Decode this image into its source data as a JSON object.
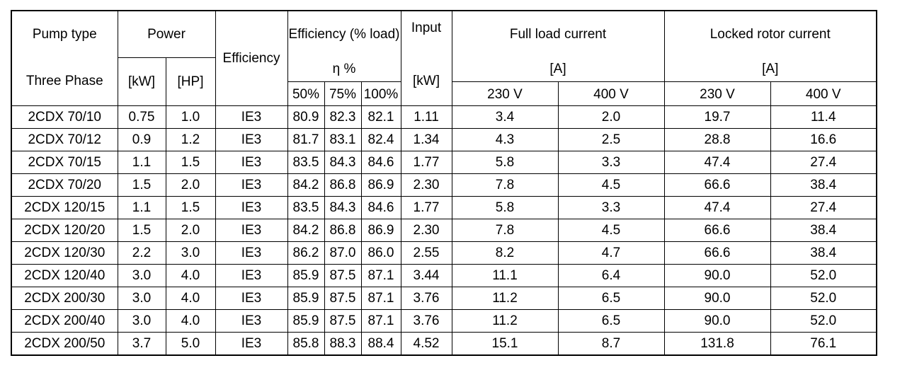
{
  "header": {
    "pump_type": "Pump type",
    "three_phase": "Three Phase",
    "power": "Power",
    "kw": "[kW]",
    "hp": "[HP]",
    "efficiency": "Efficiency",
    "efficiency_load": "Efficiency (% load)",
    "eta_pct": "η %",
    "load_50": "50%",
    "load_75": "75%",
    "load_100": "100%",
    "input": "Input",
    "input_kw": "[kW]",
    "full_load_current": "Full load current",
    "full_load_unit": "[A]",
    "locked_rotor_current": "Locked rotor current",
    "locked_rotor_unit": "[A]",
    "v230_a": "230 V",
    "v400_a": "400 V",
    "v230_b": "230 V",
    "v400_b": "400 V"
  },
  "rows": [
    [
      "2CDX 70/10",
      "0.75",
      "1.0",
      "IE3",
      "80.9",
      "82.3",
      "82.1",
      "1.11",
      "3.4",
      "2.0",
      "19.7",
      "11.4"
    ],
    [
      "2CDX 70/12",
      "0.9",
      "1.2",
      "IE3",
      "81.7",
      "83.1",
      "82.4",
      "1.34",
      "4.3",
      "2.5",
      "28.8",
      "16.6"
    ],
    [
      "2CDX 70/15",
      "1.1",
      "1.5",
      "IE3",
      "83.5",
      "84.3",
      "84.6",
      "1.77",
      "5.8",
      "3.3",
      "47.4",
      "27.4"
    ],
    [
      "2CDX 70/20",
      "1.5",
      "2.0",
      "IE3",
      "84.2",
      "86.8",
      "86.9",
      "2.30",
      "7.8",
      "4.5",
      "66.6",
      "38.4"
    ],
    [
      "2CDX 120/15",
      "1.1",
      "1.5",
      "IE3",
      "83.5",
      "84.3",
      "84.6",
      "1.77",
      "5.8",
      "3.3",
      "47.4",
      "27.4"
    ],
    [
      "2CDX 120/20",
      "1.5",
      "2.0",
      "IE3",
      "84.2",
      "86.8",
      "86.9",
      "2.30",
      "7.8",
      "4.5",
      "66.6",
      "38.4"
    ],
    [
      "2CDX 120/30",
      "2.2",
      "3.0",
      "IE3",
      "86.2",
      "87.0",
      "86.0",
      "2.55",
      "8.2",
      "4.7",
      "66.6",
      "38.4"
    ],
    [
      "2CDX 120/40",
      "3.0",
      "4.0",
      "IE3",
      "85.9",
      "87.5",
      "87.1",
      "3.44",
      "11.1",
      "6.4",
      "90.0",
      "52.0"
    ],
    [
      "2CDX 200/30",
      "3.0",
      "4.0",
      "IE3",
      "85.9",
      "87.5",
      "87.1",
      "3.76",
      "11.2",
      "6.5",
      "90.0",
      "52.0"
    ],
    [
      "2CDX 200/40",
      "3.0",
      "4.0",
      "IE3",
      "85.9",
      "87.5",
      "87.1",
      "3.76",
      "11.2",
      "6.5",
      "90.0",
      "52.0"
    ],
    [
      "2CDX 200/50",
      "3.7",
      "5.0",
      "IE3",
      "85.8",
      "88.3",
      "88.4",
      "4.52",
      "15.1",
      "8.7",
      "131.8",
      "76.1"
    ]
  ]
}
